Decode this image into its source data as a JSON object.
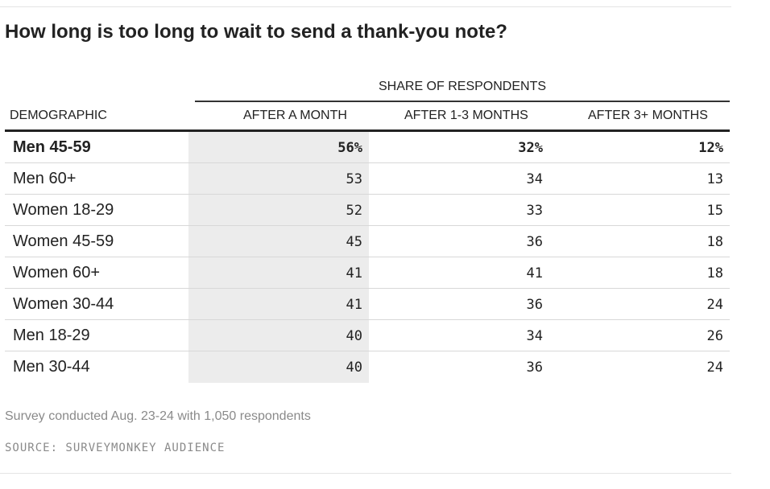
{
  "chart_data": {
    "type": "table",
    "title": "How long is too long to wait to send a thank-you note?",
    "group_header": "SHARE OF RESPONDENTS",
    "columns": [
      "DEMOGRAPHIC",
      "AFTER A MONTH",
      "AFTER 1-3 MONTHS",
      "AFTER 3+ MONTHS"
    ],
    "rows": [
      {
        "label": "Men 45-59",
        "values": [
          "56%",
          "32%",
          "12%"
        ]
      },
      {
        "label": "Men 60+",
        "values": [
          "53",
          "34",
          "13"
        ]
      },
      {
        "label": "Women 18-29",
        "values": [
          "52",
          "33",
          "15"
        ]
      },
      {
        "label": "Women 45-59",
        "values": [
          "45",
          "36",
          "18"
        ]
      },
      {
        "label": "Women 60+",
        "values": [
          "41",
          "41",
          "18"
        ]
      },
      {
        "label": "Women 30-44",
        "values": [
          "41",
          "36",
          "24"
        ]
      },
      {
        "label": "Men 18-29",
        "values": [
          "40",
          "34",
          "26"
        ]
      },
      {
        "label": "Men 30-44",
        "values": [
          "40",
          "36",
          "24"
        ]
      }
    ],
    "note": "Survey conducted Aug. 23-24 with 1,050 respondents",
    "source": "SOURCE: SURVEYMONKEY AUDIENCE",
    "highlight_color": "#ececec"
  }
}
